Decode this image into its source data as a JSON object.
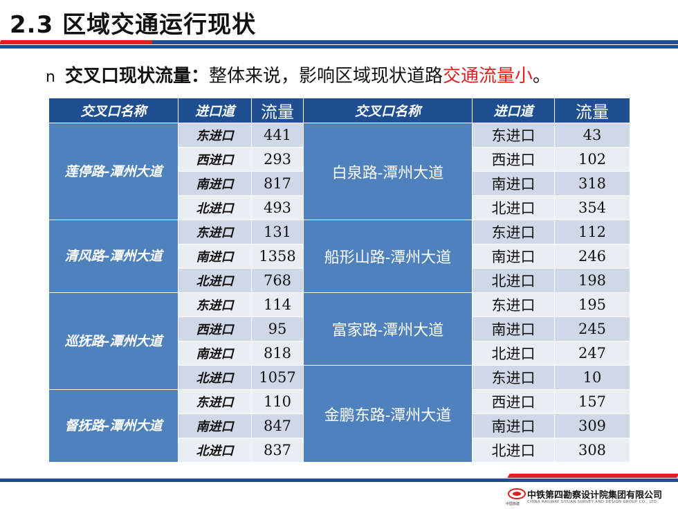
{
  "header": {
    "title": "2.3 区域交通运行现状"
  },
  "subtitle": {
    "bullet": "n",
    "bold": "交叉口现状流量：",
    "normal": "整体来说，影响区域现状道路",
    "red": "交通流量小",
    "end": "。"
  },
  "table": {
    "headers": [
      "交叉口名称",
      "进口道",
      "流量",
      "交叉口名称",
      "进口道",
      "流量"
    ],
    "left_groups": [
      {
        "name": "莲停路-潭州大道",
        "rows": [
          [
            "东进口",
            "441"
          ],
          [
            "西进口",
            "293"
          ],
          [
            "南进口",
            "817"
          ],
          [
            "北进口",
            "493"
          ]
        ]
      },
      {
        "name": "清风路-潭州大道",
        "rows": [
          [
            "东进口",
            "131"
          ],
          [
            "南进口",
            "1358"
          ],
          [
            "北进口",
            "768"
          ]
        ]
      },
      {
        "name": "巡抚路-潭州大道",
        "rows": [
          [
            "东进口",
            "114"
          ],
          [
            "西进口",
            "95"
          ],
          [
            "南进口",
            "818"
          ],
          [
            "北进口",
            "1057"
          ]
        ]
      },
      {
        "name": "督抚路-潭州大道",
        "rows": [
          [
            "东进口",
            "110"
          ],
          [
            "南进口",
            "847"
          ],
          [
            "北进口",
            "837"
          ]
        ]
      }
    ],
    "right_groups": [
      {
        "name": "白泉路-潭州大道",
        "rows": [
          [
            "东进口",
            "43"
          ],
          [
            "西进口",
            "102"
          ],
          [
            "南进口",
            "318"
          ],
          [
            "北进口",
            "354"
          ]
        ]
      },
      {
        "name": "船形山路-潭州大道",
        "rows": [
          [
            "东进口",
            "112"
          ],
          [
            "南进口",
            "246"
          ],
          [
            "北进口",
            "198"
          ]
        ]
      },
      {
        "name": "富家路-潭州大道",
        "rows": [
          [
            "东进口",
            "195"
          ],
          [
            "南进口",
            "245"
          ],
          [
            "北进口",
            "247"
          ]
        ]
      },
      {
        "name": "金鹏东路-潭州大道",
        "rows": [
          [
            "东进口",
            "10"
          ],
          [
            "西进口",
            "157"
          ],
          [
            "南进口",
            "309"
          ],
          [
            "北进口",
            "308"
          ]
        ]
      }
    ]
  },
  "footer": {
    "company": "中铁第四勘察设计院集团有限公司",
    "company_en": "CHINA RAILWAY SIYUAN SURVEY AND DESIGN GROUP CO., LTD.",
    "logo_small": "中国铁建"
  },
  "colors": {
    "accent_blue": "#1f4e91",
    "accent_red": "#e0201b",
    "group_blue": "#4f81bd"
  }
}
